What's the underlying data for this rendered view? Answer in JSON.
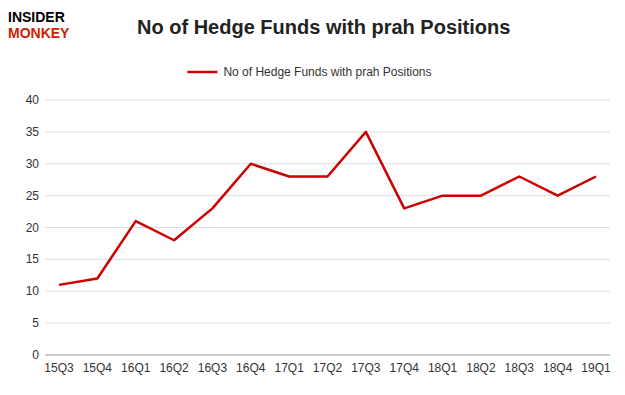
{
  "chart_data": {
    "type": "line",
    "title": "No of Hedge Funds with prah Positions",
    "categories": [
      "15Q3",
      "15Q4",
      "16Q1",
      "16Q2",
      "16Q3",
      "16Q4",
      "17Q1",
      "17Q2",
      "17Q3",
      "17Q4",
      "18Q1",
      "18Q2",
      "18Q3",
      "18Q4",
      "19Q1"
    ],
    "series": [
      {
        "name": "No of Hedge Funds with prah Positions",
        "color": "#cc0000",
        "values": [
          11,
          12,
          21,
          18,
          23,
          30,
          28,
          28,
          35,
          23,
          25,
          25,
          28,
          25,
          28
        ]
      }
    ],
    "ylim": [
      0,
      40
    ],
    "yticks": [
      0,
      5,
      10,
      15,
      20,
      25,
      30,
      35,
      40
    ],
    "grid": true,
    "legend": "top",
    "annotations": [
      {
        "text": "INSIDER",
        "color": "#000000"
      },
      {
        "text": "MONKEY",
        "color": "#cc2200"
      }
    ]
  }
}
